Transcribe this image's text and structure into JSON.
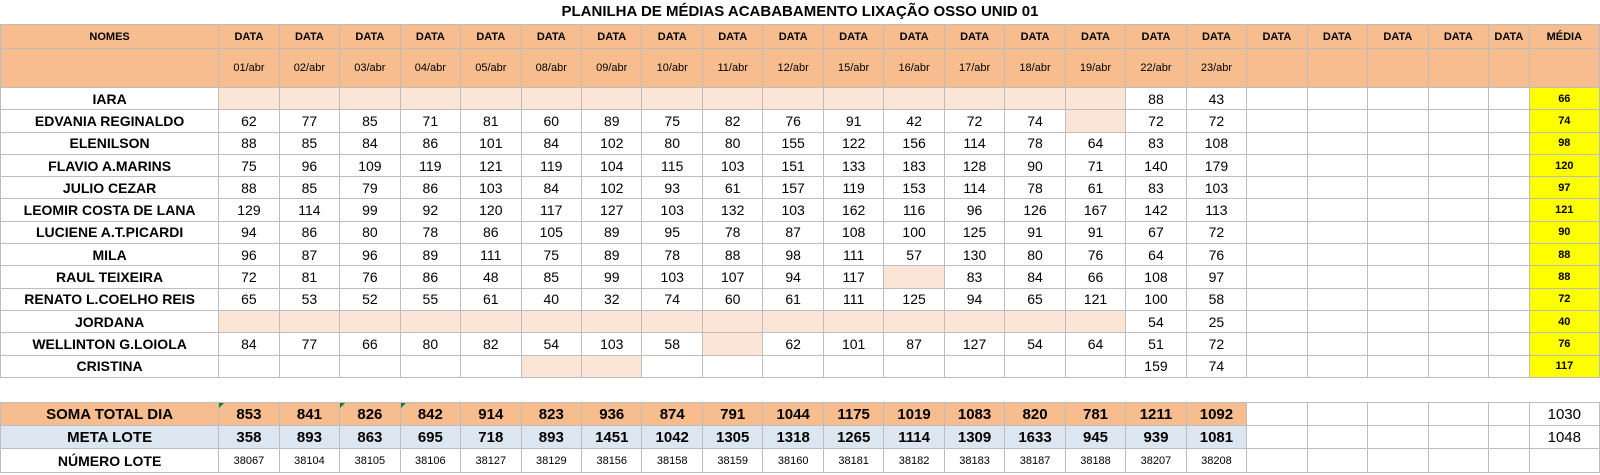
{
  "title": "PLANILHA DE MÉDIAS ACABABAMENTO LIXAÇÃO OSSO UNID 01",
  "header": {
    "nomes": "NOMES",
    "data_label": "DATA",
    "media_label": "MÉDIA",
    "dates": [
      "01/abr",
      "02/abr",
      "03/abr",
      "04/abr",
      "05/abr",
      "08/abr",
      "09/abr",
      "10/abr",
      "11/abr",
      "12/abr",
      "15/abr",
      "16/abr",
      "17/abr",
      "18/abr",
      "19/abr",
      "22/abr",
      "23/abr",
      "",
      "",
      "",
      "",
      ""
    ]
  },
  "rows": [
    {
      "name": "IARA",
      "values": [
        "",
        "",
        "",
        "",
        "",
        "",
        "",
        "",
        "",
        "",
        "",
        "",
        "",
        "",
        "",
        "88",
        "43"
      ],
      "media": "66"
    },
    {
      "name": "EDVANIA REGINALDO",
      "values": [
        "62",
        "77",
        "85",
        "71",
        "81",
        "60",
        "89",
        "75",
        "82",
        "76",
        "91",
        "42",
        "72",
        "74",
        "",
        "72",
        "72"
      ],
      "media": "74"
    },
    {
      "name": "ELENILSON",
      "values": [
        "88",
        "85",
        "84",
        "86",
        "101",
        "84",
        "102",
        "80",
        "80",
        "155",
        "122",
        "156",
        "114",
        "78",
        "64",
        "83",
        "108"
      ],
      "media": "98"
    },
    {
      "name": "FLAVIO A.MARINS",
      "values": [
        "75",
        "96",
        "109",
        "119",
        "121",
        "119",
        "104",
        "115",
        "103",
        "151",
        "133",
        "183",
        "128",
        "90",
        "71",
        "140",
        "179"
      ],
      "media": "120"
    },
    {
      "name": "JULIO CEZAR",
      "values": [
        "88",
        "85",
        "79",
        "86",
        "103",
        "84",
        "102",
        "93",
        "61",
        "157",
        "119",
        "153",
        "114",
        "78",
        "61",
        "83",
        "103"
      ],
      "media": "97"
    },
    {
      "name": "LEOMIR COSTA DE LANA",
      "values": [
        "129",
        "114",
        "99",
        "92",
        "120",
        "117",
        "127",
        "103",
        "132",
        "103",
        "162",
        "116",
        "96",
        "126",
        "167",
        "142",
        "113"
      ],
      "media": "121"
    },
    {
      "name": "LUCIENE A.T.PICARDI",
      "values": [
        "94",
        "86",
        "80",
        "78",
        "86",
        "105",
        "89",
        "95",
        "78",
        "87",
        "108",
        "100",
        "125",
        "91",
        "91",
        "67",
        "72"
      ],
      "media": "90"
    },
    {
      "name": "MILA",
      "values": [
        "96",
        "87",
        "96",
        "89",
        "111",
        "75",
        "89",
        "78",
        "88",
        "98",
        "111",
        "57",
        "130",
        "80",
        "76",
        "64",
        "76"
      ],
      "media": "88"
    },
    {
      "name": "RAUL TEIXEIRA",
      "values": [
        "72",
        "81",
        "76",
        "86",
        "48",
        "85",
        "99",
        "103",
        "107",
        "94",
        "117",
        "",
        "83",
        "84",
        "66",
        "108",
        "97"
      ],
      "media": "88"
    },
    {
      "name": "RENATO L.COELHO REIS",
      "values": [
        "65",
        "53",
        "52",
        "55",
        "61",
        "40",
        "32",
        "74",
        "60",
        "61",
        "111",
        "125",
        "94",
        "65",
        "121",
        "100",
        "58"
      ],
      "media": "72"
    },
    {
      "name": "JORDANA",
      "values": [
        "",
        "",
        "",
        "",
        "",
        "",
        "",
        "",
        "",
        "",
        "",
        "",
        "",
        "",
        "",
        "54",
        "25"
      ],
      "media": "40"
    },
    {
      "name": "WELLINTON G.LOIOLA",
      "values": [
        "84",
        "77",
        "66",
        "80",
        "82",
        "54",
        "103",
        "58",
        "",
        "62",
        "101",
        "87",
        "127",
        "54",
        "64",
        "51",
        "72"
      ],
      "media": "76"
    },
    {
      "name": "CRISTINA",
      "values": [
        "",
        "",
        "",
        "",
        "",
        "",
        "",
        "",
        "",
        "",
        "",
        "",
        "",
        "",
        "",
        "159",
        "74"
      ],
      "media": "117"
    }
  ],
  "soma": {
    "label": "SOMA TOTAL DIA",
    "values": [
      "853",
      "841",
      "826",
      "842",
      "914",
      "823",
      "936",
      "874",
      "791",
      "1044",
      "1175",
      "1019",
      "1083",
      "820",
      "781",
      "1211",
      "1092"
    ],
    "total": "1030"
  },
  "meta": {
    "label": "META LOTE",
    "values": [
      "358",
      "893",
      "863",
      "695",
      "718",
      "893",
      "1451",
      "1042",
      "1305",
      "1318",
      "1265",
      "1114",
      "1309",
      "1633",
      "945",
      "939",
      "1081"
    ],
    "total": "1048"
  },
  "numero": {
    "label": "NÚMERO LOTE",
    "values": [
      "38067",
      "38104",
      "38105",
      "38106",
      "38127",
      "38129",
      "38156",
      "38158",
      "38159",
      "38160",
      "38181",
      "38182",
      "38183",
      "38187",
      "38188",
      "38207",
      "38208"
    ]
  },
  "colors": {
    "header": "#f8bd8f",
    "empty_cell": "#fbe5d6",
    "media": "#ffff00",
    "meta_row": "#dce6f1"
  }
}
